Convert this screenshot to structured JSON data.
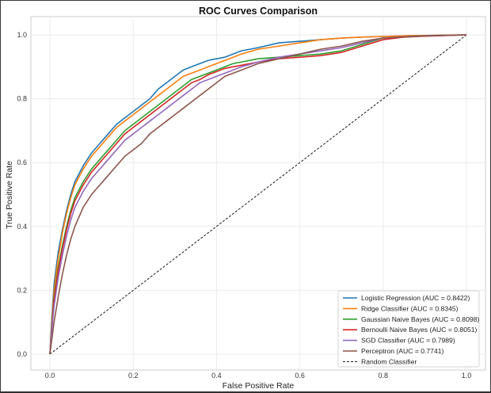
{
  "chart_data": {
    "type": "line",
    "title": "ROC Curves Comparison",
    "xlabel": "False Positive Rate",
    "ylabel": "True Positive Rate",
    "xlim": [
      0,
      1
    ],
    "ylim": [
      0,
      1
    ],
    "xticks": [
      "0.0",
      "0.2",
      "0.4",
      "0.6",
      "0.8",
      "1.0"
    ],
    "yticks": [
      "0.0",
      "0.2",
      "0.4",
      "0.6",
      "0.8",
      "1.0"
    ],
    "grid": true,
    "legend_position": "lower-right",
    "series": [
      {
        "name": "Logistic Regression (AUC = 0.8422)",
        "color": "#1f77b4",
        "x": [
          0,
          0.005,
          0.01,
          0.02,
          0.03,
          0.04,
          0.05,
          0.06,
          0.08,
          0.1,
          0.12,
          0.14,
          0.16,
          0.18,
          0.2,
          0.22,
          0.24,
          0.26,
          0.28,
          0.3,
          0.32,
          0.34,
          0.36,
          0.38,
          0.4,
          0.42,
          0.44,
          0.46,
          0.5,
          0.55,
          0.6,
          0.65,
          0.7,
          0.75,
          0.8,
          0.85,
          0.9,
          0.95,
          1.0
        ],
        "y": [
          0,
          0.12,
          0.22,
          0.32,
          0.39,
          0.45,
          0.5,
          0.54,
          0.59,
          0.63,
          0.66,
          0.69,
          0.72,
          0.74,
          0.76,
          0.78,
          0.8,
          0.83,
          0.85,
          0.87,
          0.89,
          0.9,
          0.91,
          0.92,
          0.925,
          0.93,
          0.94,
          0.95,
          0.96,
          0.975,
          0.98,
          0.985,
          0.99,
          0.993,
          0.995,
          0.997,
          0.998,
          0.999,
          1.0
        ]
      },
      {
        "name": "Ridge Classifier (AUC = 0.8345)",
        "color": "#ff7f0e",
        "x": [
          0,
          0.005,
          0.01,
          0.02,
          0.03,
          0.04,
          0.05,
          0.06,
          0.08,
          0.1,
          0.12,
          0.14,
          0.16,
          0.18,
          0.2,
          0.22,
          0.24,
          0.26,
          0.28,
          0.3,
          0.32,
          0.34,
          0.36,
          0.38,
          0.4,
          0.42,
          0.44,
          0.46,
          0.5,
          0.55,
          0.6,
          0.65,
          0.7,
          0.75,
          0.8,
          0.85,
          0.9,
          0.95,
          1.0
        ],
        "y": [
          0,
          0.11,
          0.2,
          0.3,
          0.38,
          0.44,
          0.49,
          0.53,
          0.58,
          0.62,
          0.65,
          0.68,
          0.71,
          0.73,
          0.75,
          0.77,
          0.79,
          0.81,
          0.83,
          0.85,
          0.87,
          0.88,
          0.89,
          0.9,
          0.91,
          0.92,
          0.93,
          0.94,
          0.955,
          0.965,
          0.975,
          0.985,
          0.99,
          0.993,
          0.995,
          0.997,
          0.998,
          0.999,
          1.0
        ]
      },
      {
        "name": "Gaussian Naive Bayes (AUC = 0.8098)",
        "color": "#2ca02c",
        "x": [
          0,
          0.005,
          0.01,
          0.02,
          0.03,
          0.04,
          0.05,
          0.06,
          0.08,
          0.1,
          0.12,
          0.14,
          0.16,
          0.18,
          0.2,
          0.22,
          0.24,
          0.26,
          0.28,
          0.3,
          0.32,
          0.34,
          0.36,
          0.38,
          0.4,
          0.42,
          0.44,
          0.46,
          0.5,
          0.55,
          0.6,
          0.65,
          0.7,
          0.75,
          0.8,
          0.85,
          0.9,
          0.95,
          1.0
        ],
        "y": [
          0,
          0.1,
          0.18,
          0.27,
          0.34,
          0.4,
          0.45,
          0.49,
          0.54,
          0.58,
          0.61,
          0.64,
          0.67,
          0.7,
          0.72,
          0.74,
          0.76,
          0.78,
          0.8,
          0.82,
          0.84,
          0.86,
          0.87,
          0.88,
          0.89,
          0.9,
          0.91,
          0.915,
          0.925,
          0.93,
          0.935,
          0.94,
          0.95,
          0.97,
          0.99,
          0.993,
          0.996,
          0.998,
          1.0
        ]
      },
      {
        "name": "Bernoulli Naive Bayes (AUC = 0.8051)",
        "color": "#d62728",
        "x": [
          0,
          0.005,
          0.01,
          0.02,
          0.03,
          0.04,
          0.05,
          0.06,
          0.08,
          0.1,
          0.12,
          0.14,
          0.16,
          0.18,
          0.2,
          0.22,
          0.24,
          0.26,
          0.28,
          0.3,
          0.32,
          0.34,
          0.36,
          0.38,
          0.4,
          0.42,
          0.44,
          0.46,
          0.5,
          0.55,
          0.6,
          0.65,
          0.7,
          0.75,
          0.8,
          0.85,
          0.9,
          0.95,
          1.0
        ],
        "y": [
          0,
          0.09,
          0.17,
          0.26,
          0.33,
          0.39,
          0.44,
          0.48,
          0.53,
          0.57,
          0.6,
          0.63,
          0.66,
          0.69,
          0.71,
          0.73,
          0.75,
          0.77,
          0.79,
          0.81,
          0.83,
          0.85,
          0.86,
          0.875,
          0.885,
          0.895,
          0.9,
          0.905,
          0.915,
          0.925,
          0.93,
          0.935,
          0.945,
          0.965,
          0.985,
          0.993,
          0.996,
          0.998,
          1.0
        ]
      },
      {
        "name": "SGD Classifier (AUC = 0.7989)",
        "color": "#9467bd",
        "x": [
          0,
          0.005,
          0.01,
          0.02,
          0.03,
          0.04,
          0.05,
          0.06,
          0.08,
          0.1,
          0.12,
          0.14,
          0.16,
          0.18,
          0.2,
          0.22,
          0.24,
          0.26,
          0.28,
          0.3,
          0.32,
          0.34,
          0.36,
          0.38,
          0.4,
          0.42,
          0.44,
          0.46,
          0.5,
          0.55,
          0.6,
          0.65,
          0.7,
          0.75,
          0.8,
          0.85,
          0.9,
          0.95,
          1.0
        ],
        "y": [
          0,
          0.08,
          0.15,
          0.24,
          0.31,
          0.37,
          0.42,
          0.46,
          0.51,
          0.55,
          0.58,
          0.61,
          0.64,
          0.67,
          0.69,
          0.71,
          0.73,
          0.75,
          0.77,
          0.79,
          0.81,
          0.83,
          0.85,
          0.86,
          0.87,
          0.88,
          0.89,
          0.9,
          0.915,
          0.93,
          0.94,
          0.95,
          0.96,
          0.975,
          0.99,
          0.994,
          0.997,
          0.999,
          1.0
        ]
      },
      {
        "name": "Perceptron (AUC = 0.7741)",
        "color": "#8c564b",
        "x": [
          0,
          0.005,
          0.01,
          0.02,
          0.03,
          0.04,
          0.05,
          0.06,
          0.08,
          0.1,
          0.12,
          0.14,
          0.16,
          0.18,
          0.2,
          0.22,
          0.24,
          0.26,
          0.28,
          0.3,
          0.32,
          0.34,
          0.36,
          0.38,
          0.4,
          0.42,
          0.44,
          0.46,
          0.5,
          0.55,
          0.6,
          0.65,
          0.7,
          0.75,
          0.8,
          0.85,
          0.9,
          0.95,
          1.0
        ],
        "y": [
          0,
          0.05,
          0.1,
          0.18,
          0.25,
          0.31,
          0.36,
          0.4,
          0.46,
          0.5,
          0.53,
          0.56,
          0.59,
          0.62,
          0.64,
          0.66,
          0.69,
          0.71,
          0.73,
          0.75,
          0.77,
          0.79,
          0.81,
          0.83,
          0.85,
          0.87,
          0.88,
          0.89,
          0.91,
          0.925,
          0.94,
          0.955,
          0.965,
          0.98,
          0.99,
          0.994,
          0.997,
          0.999,
          1.0
        ]
      },
      {
        "name": "Random Classifier",
        "color": "#000000",
        "dashed": true,
        "x": [
          0,
          1
        ],
        "y": [
          0,
          1
        ]
      }
    ]
  }
}
